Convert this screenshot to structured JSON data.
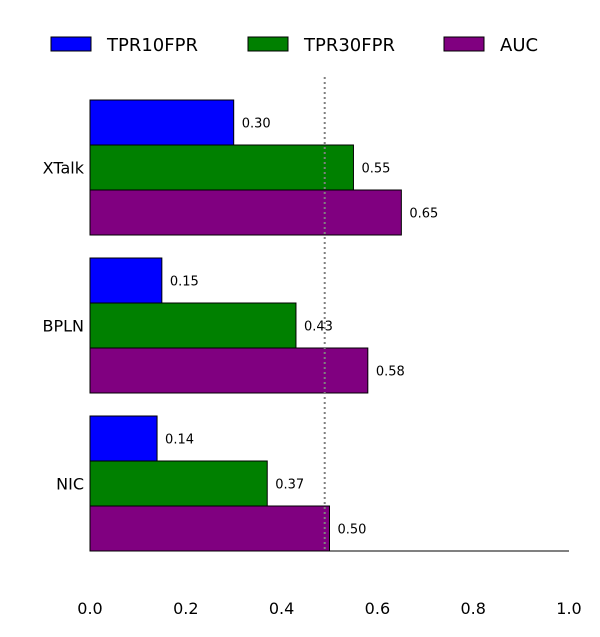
{
  "chart_data": {
    "type": "bar",
    "orientation": "horizontal",
    "categories": [
      "XTalk",
      "BPLN",
      "NIC"
    ],
    "series": [
      {
        "name": "TPR10FPR",
        "values": [
          0.3,
          0.15,
          0.14
        ],
        "color": "#0000ff"
      },
      {
        "name": "TPR30FPR",
        "values": [
          0.55,
          0.43,
          0.37
        ],
        "color": "#008000"
      },
      {
        "name": "AUC",
        "values": [
          0.65,
          0.58,
          0.5
        ],
        "color": "#800080"
      }
    ],
    "value_labels": [
      [
        "0.30",
        "0.15",
        "0.14"
      ],
      [
        "0.55",
        "0.43",
        "0.37"
      ],
      [
        "0.65",
        "0.58",
        "0.50"
      ]
    ],
    "xlim": [
      0.0,
      1.0
    ],
    "xticks": [
      "0.0",
      "0.2",
      "0.4",
      "0.6",
      "0.8",
      "1.0"
    ],
    "reference_line": {
      "x": 0.49,
      "style": "dotted",
      "color": "#808080"
    },
    "grid": false,
    "legend_position": "top"
  }
}
